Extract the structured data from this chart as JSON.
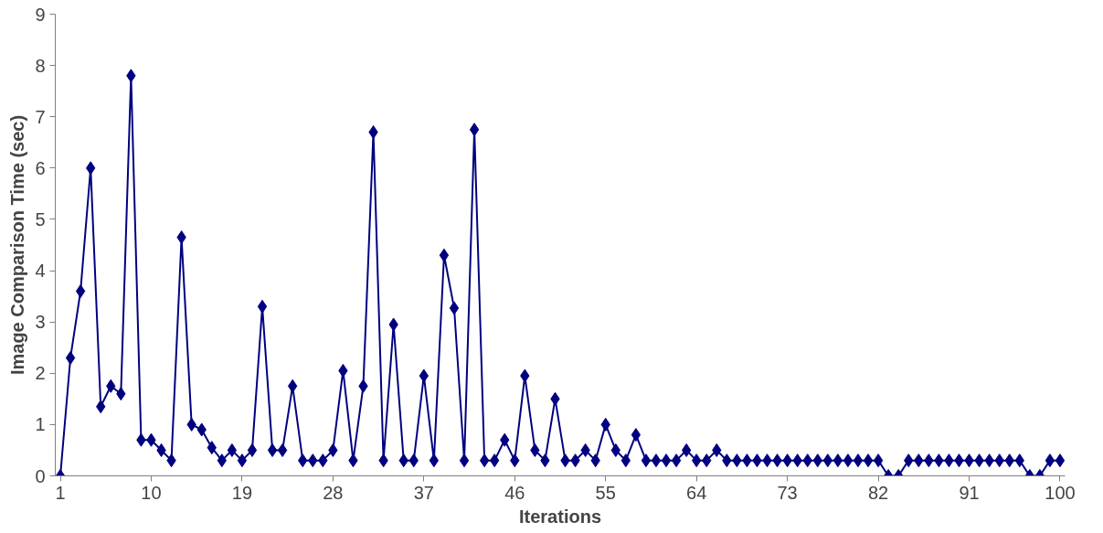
{
  "chart_data": {
    "type": "line",
    "xlabel": "Iterations",
    "ylabel": "Image Comparison Time (sec)",
    "x": [
      1,
      2,
      3,
      4,
      5,
      6,
      7,
      8,
      9,
      10,
      11,
      12,
      13,
      14,
      15,
      16,
      17,
      18,
      19,
      20,
      21,
      22,
      23,
      24,
      25,
      26,
      27,
      28,
      29,
      30,
      31,
      32,
      33,
      34,
      35,
      36,
      37,
      38,
      39,
      40,
      41,
      42,
      43,
      44,
      45,
      46,
      47,
      48,
      49,
      50,
      51,
      52,
      53,
      54,
      55,
      56,
      57,
      58,
      59,
      60,
      61,
      62,
      63,
      64,
      65,
      66,
      67,
      68,
      69,
      70,
      71,
      72,
      73,
      74,
      75,
      76,
      77,
      78,
      79,
      80,
      81,
      82,
      83,
      84,
      85,
      86,
      87,
      88,
      89,
      90,
      91,
      92,
      93,
      94,
      95,
      96,
      97,
      98,
      99,
      100
    ],
    "series": [
      {
        "color": "#000080",
        "values": [
          0,
          2.3,
          3.6,
          6.0,
          1.35,
          1.75,
          1.6,
          7.8,
          0.7,
          0.7,
          0.5,
          0.3,
          4.65,
          1.0,
          0.9,
          0.55,
          0.3,
          0.5,
          0.3,
          0.5,
          3.3,
          0.5,
          0.5,
          1.75,
          0.3,
          0.3,
          0.3,
          0.5,
          2.05,
          0.3,
          1.75,
          6.7,
          0.3,
          2.95,
          0.3,
          0.3,
          1.95,
          0.3,
          4.3,
          3.27,
          0.3,
          6.75,
          0.3,
          0.3,
          0.7,
          0.3,
          1.95,
          0.5,
          0.3,
          1.5,
          0.3,
          0.3,
          0.5,
          0.3,
          1.0,
          0.5,
          0.3,
          0.8,
          0.3,
          0.3,
          0.3,
          0.3,
          0.5,
          0.3,
          0.3,
          0.5,
          0.3,
          0.3,
          0.3,
          0.3,
          0.3,
          0.3,
          0.3,
          0.3,
          0.3,
          0.3,
          0.3,
          0.3,
          0.3,
          0.3,
          0.3,
          0.3,
          0,
          0,
          0.3,
          0.3,
          0.3,
          0.3,
          0.3,
          0.3,
          0.3,
          0.3,
          0.3,
          0.3,
          0.3,
          0.3,
          0,
          0,
          0.3,
          0.3
        ]
      }
    ],
    "xlim": [
      0.5,
      100.5
    ],
    "xticks": [
      1,
      10,
      19,
      28,
      37,
      46,
      55,
      64,
      73,
      82,
      91,
      100
    ],
    "ylim": [
      0,
      9
    ],
    "yticks": [
      0,
      1,
      2,
      3,
      4,
      5,
      6,
      7,
      8,
      9
    ],
    "grid": false,
    "marker": "diamond",
    "line_style": "solid"
  }
}
